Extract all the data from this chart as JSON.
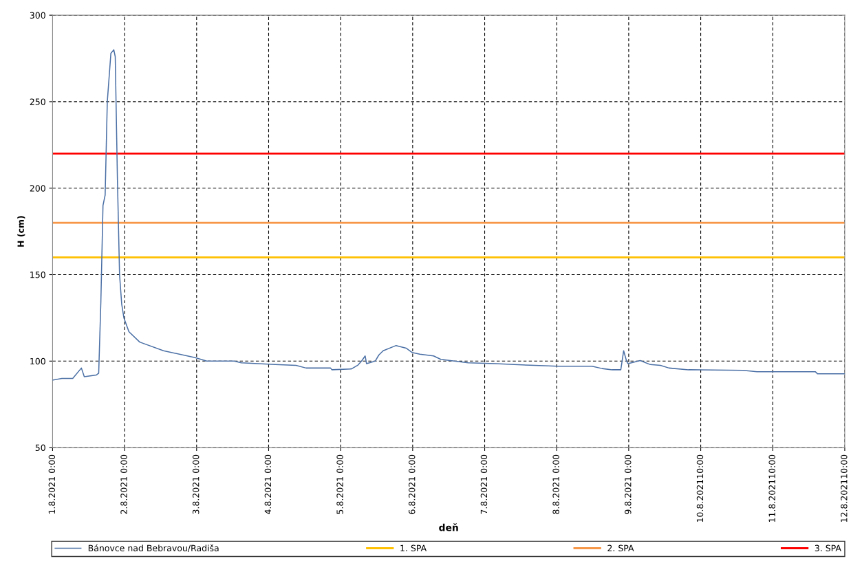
{
  "chart_data": {
    "type": "line",
    "xlabel": "deň",
    "ylabel": "H (cm)",
    "xlim": [
      "2021-08-01T00:00",
      "2021-08-12T00:00"
    ],
    "ylim": [
      50,
      300
    ],
    "xticks": [
      {
        "value": "2021-08-01",
        "label": "1.8.2021 0:00"
      },
      {
        "value": "2021-08-02",
        "label": "2.8.2021 0:00"
      },
      {
        "value": "2021-08-03",
        "label": "3.8.2021 0:00"
      },
      {
        "value": "2021-08-04",
        "label": "4.8.2021 0:00"
      },
      {
        "value": "2021-08-05",
        "label": "5.8.2021 0:00"
      },
      {
        "value": "2021-08-06",
        "label": "6.8.2021 0:00"
      },
      {
        "value": "2021-08-07",
        "label": "7.8.2021 0:00"
      },
      {
        "value": "2021-08-08",
        "label": "8.8.2021 0:00"
      },
      {
        "value": "2021-08-09",
        "label": "9.8.2021 0:00"
      },
      {
        "value": "2021-08-10",
        "label": "10.8.202110:00"
      },
      {
        "value": "2021-08-11",
        "label": "11.8.202110:00"
      },
      {
        "value": "2021-08-12",
        "label": "12.8.202110:00"
      }
    ],
    "yticks": [
      50,
      100,
      150,
      200,
      250,
      300
    ],
    "grid": true,
    "legend": "bottom",
    "line_style": "solid",
    "marker": "none",
    "series": [
      {
        "name": "Bánovce nad Bebravou/Radiša",
        "color": "#4a6fa5",
        "x": [
          "2021-08-01T00:00",
          "2021-08-01T03:07",
          "2021-08-01T06:43",
          "2021-08-01T09:36",
          "2021-08-01T10:34",
          "2021-08-01T14:38",
          "2021-08-01T15:22",
          "2021-08-01T16:05",
          "2021-08-01T16:48",
          "2021-08-01T17:31",
          "2021-08-01T18:14",
          "2021-08-01T19:26",
          "2021-08-01T20:24",
          "2021-08-01T20:53",
          "2021-08-01T21:36",
          "2021-08-01T22:19",
          "2021-08-01T23:02",
          "2021-08-01T23:46",
          "2021-08-02T01:26",
          "2021-08-02T05:02",
          "2021-08-02T12:58",
          "2021-08-02T23:31",
          "2021-08-03T03:22",
          "2021-08-03T12:29",
          "2021-08-03T14:53",
          "2021-08-04T02:10",
          "2021-08-04T09:07",
          "2021-08-04T12:29",
          "2021-08-04T20:38",
          "2021-08-04T21:07",
          "2021-08-05T03:36",
          "2021-08-05T05:46",
          "2021-08-05T06:58",
          "2021-08-05T08:10",
          "2021-08-05T08:38",
          "2021-08-05T11:31",
          "2021-08-05T12:43",
          "2021-08-05T14:10",
          "2021-08-05T18:29",
          "2021-08-05T21:50",
          "2021-08-05T23:46",
          "2021-08-06T02:24",
          "2021-08-06T06:58",
          "2021-08-06T09:22",
          "2021-08-06T13:55",
          "2021-08-06T18:29",
          "2021-08-07T03:36",
          "2021-08-07T15:07",
          "2021-08-08T00:14",
          "2021-08-08T11:46",
          "2021-08-08T15:07",
          "2021-08-08T18:29",
          "2021-08-08T21:22",
          "2021-08-08T22:19",
          "2021-08-08T23:17",
          "2021-08-08T23:46",
          "2021-08-09T03:50",
          "2021-08-09T07:12",
          "2021-08-09T10:34",
          "2021-08-09T13:26",
          "2021-08-09T19:55",
          "2021-08-10T14:10",
          "2021-08-10T18:43",
          "2021-08-11T14:10",
          "2021-08-11T14:53",
          "2021-08-12T00:00"
        ],
        "values": [
          89,
          90,
          90,
          96,
          91,
          92,
          93,
          134,
          190,
          196,
          250,
          278,
          280,
          276,
          206,
          150,
          133,
          125,
          117,
          111,
          106,
          102,
          100,
          100,
          99,
          98,
          97.5,
          96,
          96,
          95,
          95.5,
          97.7,
          100,
          103,
          98.5,
          100,
          103.5,
          106,
          109,
          107.5,
          105,
          104,
          103,
          101,
          100,
          99,
          98.5,
          97.6,
          97,
          97,
          95.7,
          95,
          95,
          106,
          100,
          98.5,
          100.3,
          98,
          97.5,
          96,
          95,
          94.7,
          93.9,
          93.9,
          92.7,
          92.7
        ]
      }
    ],
    "ref_lines": [
      {
        "axis": "y",
        "value": 160,
        "label": "1. SPA",
        "color": "#ffc000"
      },
      {
        "axis": "y",
        "value": 180,
        "label": "2. SPA",
        "color": "#f79646"
      },
      {
        "axis": "y",
        "value": 220,
        "label": "3. SPA",
        "color": "#ff0000"
      }
    ]
  }
}
